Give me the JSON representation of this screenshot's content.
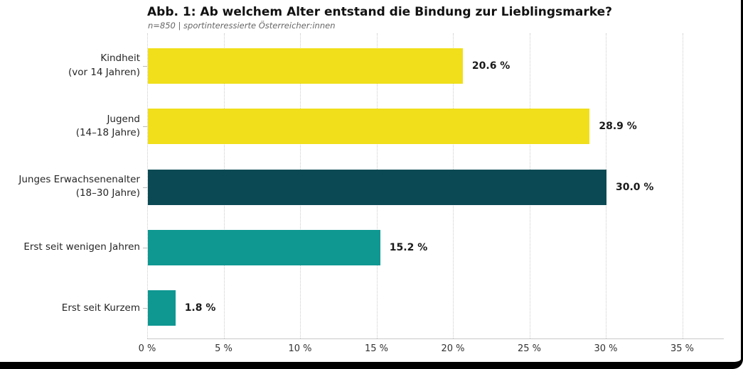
{
  "chart_data": {
    "type": "bar",
    "orientation": "horizontal",
    "title": "Abb. 1: Ab welchem Alter entstand die Bindung zur Lieblingsmarke?",
    "subtitle": "n=850 | sportinteressierte Österreicher:innen",
    "categories": [
      "Kindheit\n(vor 14 Jahren)",
      "Jugend\n(14–18 Jahre)",
      "Junges Erwachsenenalter\n(18–30 Jahre)",
      "Erst seit wenigen Jahren",
      "Erst seit Kurzem"
    ],
    "values": [
      20.6,
      28.9,
      30.0,
      15.2,
      1.8
    ],
    "value_labels": [
      "20.6 %",
      "28.9 %",
      "30.0 %",
      "15.2 %",
      "1.8 %"
    ],
    "bar_colors": [
      "#f0df1a",
      "#f0df1a",
      "#0b4a54",
      "#0f9792",
      "#0f9792"
    ],
    "xticks": [
      0,
      5,
      10,
      15,
      20,
      25,
      30,
      35
    ],
    "xtick_labels": [
      "0 %",
      "5 %",
      "10 %",
      "15 %",
      "20 %",
      "25 %",
      "30 %",
      "35 %"
    ],
    "xlim": [
      0,
      37.5
    ],
    "grid": "vertical-dotted",
    "legend": "none",
    "colors": {
      "background": "#ffffff",
      "grid": "#cccccc",
      "axis": "#c8c8c8",
      "title": "#111111",
      "subtitle": "#666666",
      "tick_label": "#333333",
      "category_label": "#262626",
      "value_label": "#1a1a1a",
      "frame_border": "#000000"
    }
  }
}
